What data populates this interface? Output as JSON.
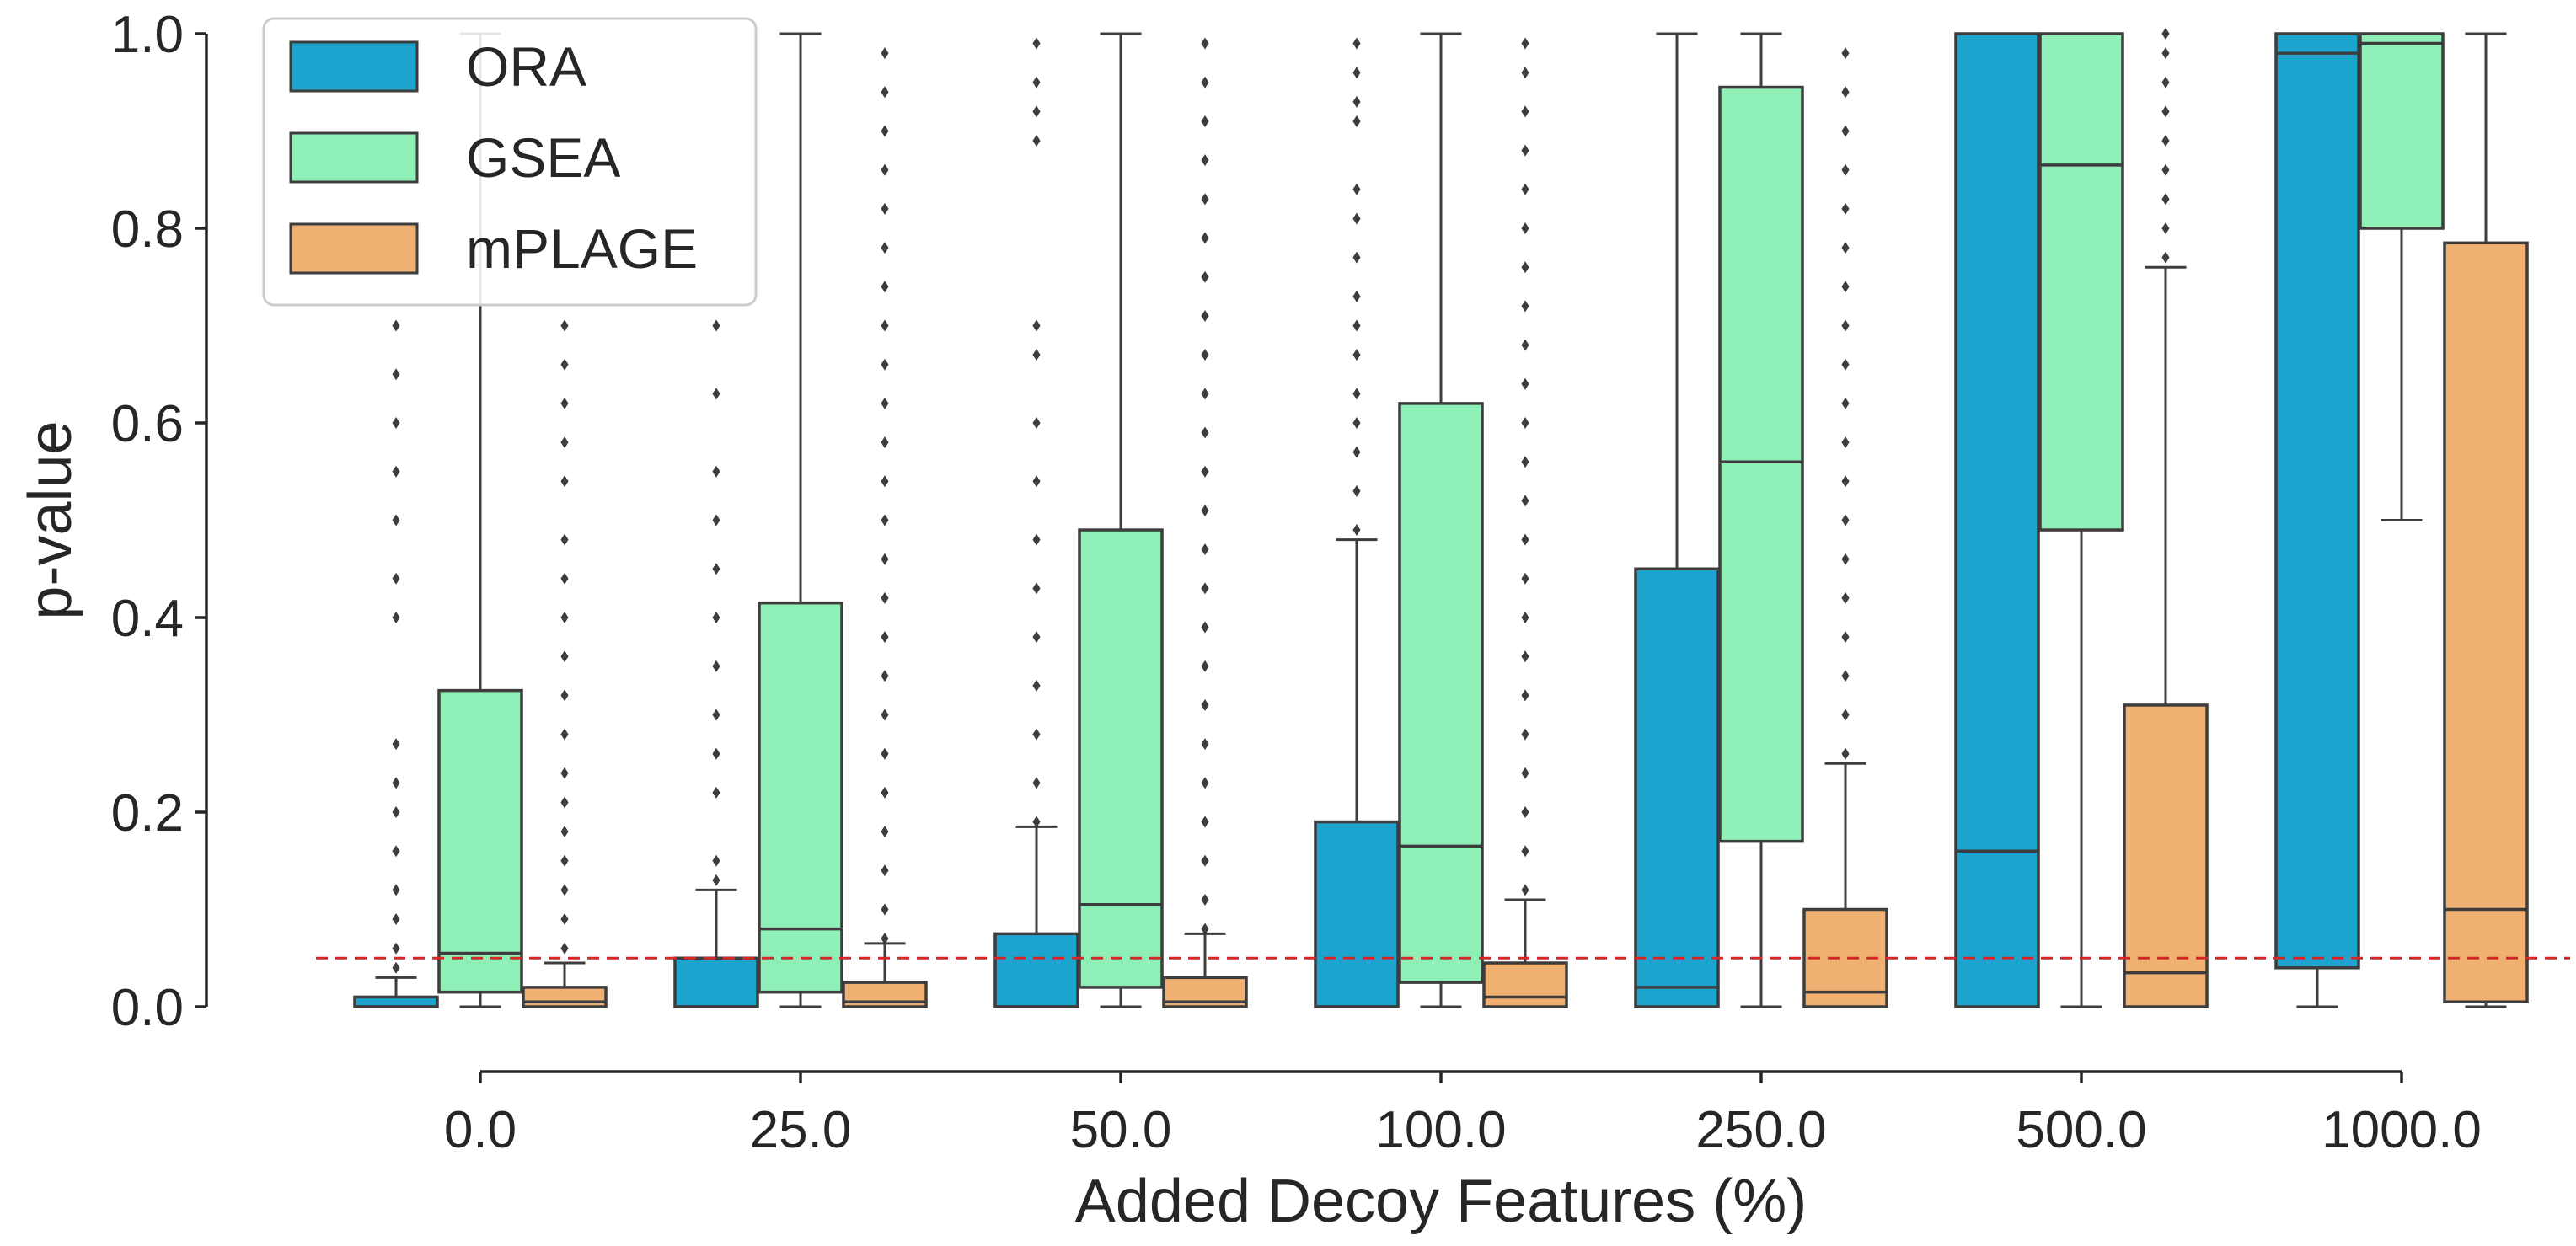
{
  "chart_data": {
    "type": "box",
    "title": "",
    "xlabel": "Added Decoy Features (%)",
    "ylabel": "p-value",
    "ylim": [
      0,
      1
    ],
    "yticks": [
      "0.0",
      "0.2",
      "0.4",
      "0.6",
      "0.8",
      "1.0"
    ],
    "categories": [
      "0.0",
      "25.0",
      "50.0",
      "100.0",
      "250.0",
      "500.0",
      "1000.0"
    ],
    "reference_line": {
      "y": 0.05,
      "style": "dashed",
      "color": "#d62728"
    },
    "legend": {
      "position": "top-left"
    },
    "series": [
      {
        "name": "ORA",
        "color": "#1ca3ce",
        "boxes": [
          {
            "q1": 0.0,
            "median": 0.0,
            "q3": 0.01,
            "whisker_low": 0.0,
            "whisker_high": 0.03,
            "outliers": [
              0.04,
              0.06,
              0.09,
              0.12,
              0.16,
              0.2,
              0.23,
              0.27,
              0.4,
              0.44,
              0.5,
              0.55,
              0.6,
              0.65,
              0.7
            ]
          },
          {
            "q1": 0.0,
            "median": 0.0,
            "q3": 0.05,
            "whisker_low": 0.0,
            "whisker_high": 0.12,
            "outliers": [
              0.13,
              0.15,
              0.22,
              0.26,
              0.3,
              0.35,
              0.4,
              0.45,
              0.5,
              0.55,
              0.63,
              0.7
            ]
          },
          {
            "q1": 0.0,
            "median": 0.0,
            "q3": 0.075,
            "whisker_low": 0.0,
            "whisker_high": 0.185,
            "outliers": [
              0.19,
              0.23,
              0.28,
              0.33,
              0.38,
              0.43,
              0.48,
              0.54,
              0.6,
              0.67,
              0.7,
              0.89,
              0.92,
              0.95,
              0.99
            ]
          },
          {
            "q1": 0.0,
            "median": 0.0,
            "q3": 0.19,
            "whisker_low": 0.0,
            "whisker_high": 0.48,
            "outliers": [
              0.49,
              0.53,
              0.57,
              0.6,
              0.63,
              0.67,
              0.7,
              0.73,
              0.77,
              0.81,
              0.84,
              0.91,
              0.93,
              0.96,
              0.99
            ]
          },
          {
            "q1": 0.0,
            "median": 0.02,
            "q3": 0.45,
            "whisker_low": 0.0,
            "whisker_high": 1.0,
            "outliers": []
          },
          {
            "q1": 0.0,
            "median": 0.16,
            "q3": 1.0,
            "whisker_low": 0.0,
            "whisker_high": 1.0,
            "outliers": []
          },
          {
            "q1": 0.04,
            "median": 0.98,
            "q3": 1.0,
            "whisker_low": 0.0,
            "whisker_high": 1.0,
            "outliers": []
          }
        ]
      },
      {
        "name": "GSEA",
        "color": "#8ef0b6",
        "boxes": [
          {
            "q1": 0.015,
            "median": 0.055,
            "q3": 0.325,
            "whisker_low": 0.0,
            "whisker_high": 1.0,
            "outliers": []
          },
          {
            "q1": 0.015,
            "median": 0.08,
            "q3": 0.415,
            "whisker_low": 0.0,
            "whisker_high": 1.0,
            "outliers": []
          },
          {
            "q1": 0.02,
            "median": 0.105,
            "q3": 0.49,
            "whisker_low": 0.0,
            "whisker_high": 1.0,
            "outliers": []
          },
          {
            "q1": 0.025,
            "median": 0.165,
            "q3": 0.62,
            "whisker_low": 0.0,
            "whisker_high": 1.0,
            "outliers": []
          },
          {
            "q1": 0.17,
            "median": 0.56,
            "q3": 0.945,
            "whisker_low": 0.0,
            "whisker_high": 1.0,
            "outliers": []
          },
          {
            "q1": 0.49,
            "median": 0.865,
            "q3": 1.0,
            "whisker_low": 0.0,
            "whisker_high": 1.0,
            "outliers": []
          },
          {
            "q1": 0.8,
            "median": 0.99,
            "q3": 1.0,
            "whisker_low": 0.5,
            "whisker_high": 1.0,
            "outliers": []
          }
        ]
      },
      {
        "name": "mPLAGE",
        "color": "#f0b072",
        "boxes": [
          {
            "q1": 0.0,
            "median": 0.005,
            "q3": 0.02,
            "whisker_low": 0.0,
            "whisker_high": 0.045,
            "outliers": [
              0.06,
              0.09,
              0.12,
              0.15,
              0.18,
              0.21,
              0.24,
              0.28,
              0.32,
              0.36,
              0.4,
              0.44,
              0.48,
              0.54,
              0.58,
              0.62,
              0.66,
              0.7
            ]
          },
          {
            "q1": 0.0,
            "median": 0.005,
            "q3": 0.025,
            "whisker_low": 0.0,
            "whisker_high": 0.065,
            "outliers": [
              0.07,
              0.1,
              0.14,
              0.18,
              0.22,
              0.26,
              0.3,
              0.34,
              0.38,
              0.42,
              0.46,
              0.5,
              0.54,
              0.58,
              0.62,
              0.66,
              0.7,
              0.74,
              0.78,
              0.82,
              0.86,
              0.9,
              0.94,
              0.98
            ]
          },
          {
            "q1": 0.0,
            "median": 0.005,
            "q3": 0.03,
            "whisker_low": 0.0,
            "whisker_high": 0.075,
            "outliers": [
              0.08,
              0.11,
              0.15,
              0.19,
              0.23,
              0.27,
              0.31,
              0.35,
              0.39,
              0.43,
              0.47,
              0.51,
              0.55,
              0.59,
              0.63,
              0.67,
              0.71,
              0.75,
              0.79,
              0.83,
              0.87,
              0.91,
              0.95,
              0.99
            ]
          },
          {
            "q1": 0.0,
            "median": 0.01,
            "q3": 0.045,
            "whisker_low": 0.0,
            "whisker_high": 0.11,
            "outliers": [
              0.12,
              0.16,
              0.2,
              0.24,
              0.28,
              0.32,
              0.36,
              0.4,
              0.44,
              0.48,
              0.52,
              0.56,
              0.6,
              0.64,
              0.68,
              0.72,
              0.76,
              0.8,
              0.84,
              0.88,
              0.92,
              0.96,
              0.99
            ]
          },
          {
            "q1": 0.0,
            "median": 0.015,
            "q3": 0.1,
            "whisker_low": 0.0,
            "whisker_high": 0.25,
            "outliers": [
              0.26,
              0.3,
              0.34,
              0.38,
              0.42,
              0.46,
              0.5,
              0.54,
              0.58,
              0.62,
              0.66,
              0.7,
              0.74,
              0.78,
              0.82,
              0.86,
              0.9,
              0.94,
              0.98
            ]
          },
          {
            "q1": 0.0,
            "median": 0.035,
            "q3": 0.31,
            "whisker_low": 0.0,
            "whisker_high": 0.76,
            "outliers": [
              0.77,
              0.8,
              0.83,
              0.86,
              0.89,
              0.92,
              0.95,
              0.98,
              1.0
            ]
          },
          {
            "q1": 0.005,
            "median": 0.1,
            "q3": 0.785,
            "whisker_low": 0.0,
            "whisker_high": 1.0,
            "outliers": []
          }
        ]
      }
    ]
  }
}
